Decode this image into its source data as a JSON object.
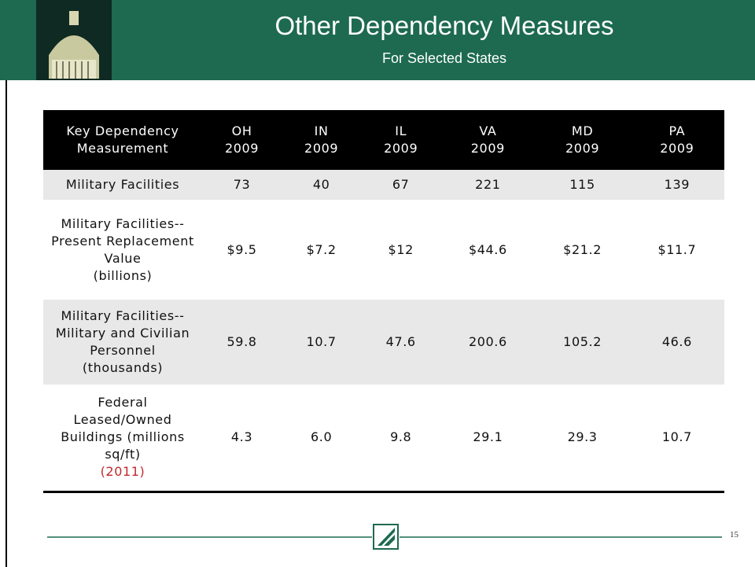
{
  "header": {
    "title": "Other Dependency Measures",
    "subtitle": "For Selected States"
  },
  "table": {
    "corner": "Key Dependency Measurement",
    "columns": [
      {
        "state": "OH",
        "year": "2009"
      },
      {
        "state": "IN",
        "year": "2009"
      },
      {
        "state": "IL",
        "year": "2009"
      },
      {
        "state": "VA",
        "year": "2009"
      },
      {
        "state": "MD",
        "year": "2009"
      },
      {
        "state": "PA",
        "year": "2009"
      }
    ],
    "rows": [
      {
        "label": "Military Facilities",
        "cells": [
          "73",
          "40",
          "67",
          "221",
          "115",
          "139"
        ]
      },
      {
        "label": "Military Facilities--Present Replacement Value",
        "note": "(billions)",
        "cells": [
          "$9.5",
          "$7.2",
          "$12",
          "$44.6",
          "$21.2",
          "$11.7"
        ]
      },
      {
        "label": "Military Facilities--Military and Civilian Personnel (thousands)",
        "cells": [
          "59.8",
          "10.7",
          "47.6",
          "200.6",
          "105.2",
          "46.6"
        ]
      },
      {
        "label": "Federal Leased/Owned Buildings (millions sq/ft)",
        "note": "(2011)",
        "cells": [
          "4.3",
          "6.0",
          "9.8",
          "29.1",
          "29.3",
          "10.7"
        ]
      }
    ]
  },
  "footer": {
    "page": "15"
  }
}
